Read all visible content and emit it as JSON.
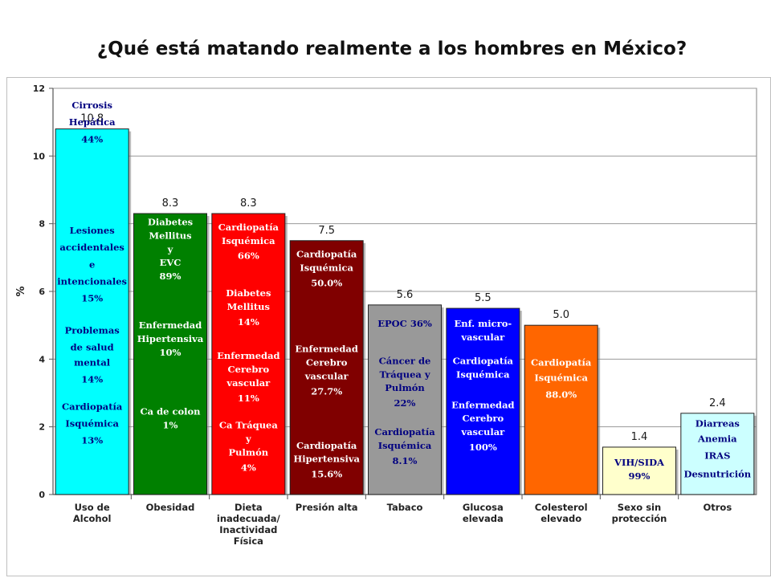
{
  "title": "¿Qué está matando realmente a los hombres en México?",
  "chart_data": {
    "type": "bar",
    "ylabel": "%",
    "xlabel": "",
    "ylim": [
      0,
      12
    ],
    "yticks": [
      "0",
      "2",
      "4",
      "6",
      "8",
      "10",
      "12"
    ],
    "grid": true,
    "categories": [
      [
        "Uso de",
        "Alcohol"
      ],
      [
        "Obesidad"
      ],
      [
        "Dieta",
        "inadecuada/",
        "Inactividad",
        "Física"
      ],
      [
        "Presión alta"
      ],
      [
        "Tabaco"
      ],
      [
        "Glucosa",
        "elevada"
      ],
      [
        "Colesterol",
        "elevado"
      ],
      [
        "Sexo sin",
        "protección"
      ],
      [
        "Otros"
      ]
    ],
    "values": [
      10.8,
      8.3,
      8.3,
      7.5,
      5.6,
      5.5,
      5.0,
      1.4,
      2.4
    ],
    "value_labels": [
      "10.8",
      "8.3",
      "8.3",
      "7.5",
      "5.6",
      "5.5",
      "5.0",
      "1.4",
      "2.4"
    ],
    "colors": [
      "#00ffff",
      "#008000",
      "#ff0000",
      "#800000",
      "#999999",
      "#0000ff",
      "#ff6600",
      "#ffffcc",
      "#ccffff"
    ],
    "annotations": [
      {
        "color": "#000080",
        "lines": [
          {
            "t": "Cirrosis",
            "v": 11.5
          },
          {
            "t": "Hepática",
            "v": 11.0
          },
          {
            "t": "44%",
            "v": 10.5
          },
          {
            "t": "Lesiones",
            "v": 7.8
          },
          {
            "t": "accidentales",
            "v": 7.3
          },
          {
            "t": "e",
            "v": 6.8
          },
          {
            "t": "intencionales",
            "v": 6.3
          },
          {
            "t": "15%",
            "v": 5.8
          },
          {
            "t": "Problemas",
            "v": 4.85
          },
          {
            "t": "de salud",
            "v": 4.35
          },
          {
            "t": "mental",
            "v": 3.9
          },
          {
            "t": "14%",
            "v": 3.4
          },
          {
            "t": "Cardiopatía",
            "v": 2.6
          },
          {
            "t": "Isquémica",
            "v": 2.1
          },
          {
            "t": "13%",
            "v": 1.6
          }
        ]
      },
      {
        "color": "#ffffff",
        "lines": [
          {
            "t": "Diabetes",
            "v": 8.05
          },
          {
            "t": "Mellitus",
            "v": 7.65
          },
          {
            "t": "y",
            "v": 7.25
          },
          {
            "t": "EVC",
            "v": 6.85
          },
          {
            "t": "89%",
            "v": 6.45
          },
          {
            "t": "Enfermedad",
            "v": 5.0
          },
          {
            "t": "Hipertensiva",
            "v": 4.6
          },
          {
            "t": "10%",
            "v": 4.2
          },
          {
            "t": "Ca de colon",
            "v": 2.45
          },
          {
            "t": "1%",
            "v": 2.05
          }
        ]
      },
      {
        "color": "#ffffff",
        "lines": [
          {
            "t": "Cardiopatía",
            "v": 7.9
          },
          {
            "t": "Isquémica",
            "v": 7.5
          },
          {
            "t": "66%",
            "v": 7.05
          },
          {
            "t": "Diabetes",
            "v": 5.95
          },
          {
            "t": "Mellitus",
            "v": 5.55
          },
          {
            "t": "14%",
            "v": 5.1
          },
          {
            "t": "Enfermedad",
            "v": 4.1
          },
          {
            "t": "Cerebro",
            "v": 3.7
          },
          {
            "t": "vascular",
            "v": 3.3
          },
          {
            "t": "11%",
            "v": 2.85
          },
          {
            "t": "Ca Tráquea",
            "v": 2.05
          },
          {
            "t": "y",
            "v": 1.65
          },
          {
            "t": "Pulmón",
            "v": 1.25
          },
          {
            "t": "4%",
            "v": 0.8
          }
        ]
      },
      {
        "color": "#ffffff",
        "lines": [
          {
            "t": "Cardiopatía",
            "v": 7.1
          },
          {
            "t": "Isquémica",
            "v": 6.7
          },
          {
            "t": "50.0%",
            "v": 6.25
          },
          {
            "t": "Enfermedad",
            "v": 4.3
          },
          {
            "t": "Cerebro",
            "v": 3.9
          },
          {
            "t": "vascular",
            "v": 3.5
          },
          {
            "t": "27.7%",
            "v": 3.05
          },
          {
            "t": "Cardiopatía",
            "v": 1.45
          },
          {
            "t": "Hipertensiva",
            "v": 1.05
          },
          {
            "t": "15.6%",
            "v": 0.6
          }
        ]
      },
      {
        "color": "#000080",
        "lines": [
          {
            "t": "EPOC 36%",
            "v": 5.05
          },
          {
            "t": "Cáncer de",
            "v": 3.95
          },
          {
            "t": "Tráquea  y",
            "v": 3.55
          },
          {
            "t": "Pulmón",
            "v": 3.15
          },
          {
            "t": "22%",
            "v": 2.7
          },
          {
            "t": "Cardiopatía",
            "v": 1.85
          },
          {
            "t": "Isquémica",
            "v": 1.45
          },
          {
            "t": "8.1%",
            "v": 1.0
          }
        ]
      },
      {
        "color": "#ffffff",
        "lines": [
          {
            "t": "Enf. micro-",
            "v": 5.05
          },
          {
            "t": "vascular",
            "v": 4.65
          },
          {
            "t": "Cardiopatía",
            "v": 3.95
          },
          {
            "t": "Isquémica",
            "v": 3.55
          },
          {
            "t": "Enfermedad",
            "v": 2.65
          },
          {
            "t": "Cerebro",
            "v": 2.25
          },
          {
            "t": "vascular",
            "v": 1.85
          },
          {
            "t": "100%",
            "v": 1.4
          }
        ]
      },
      {
        "color": "#ffffff",
        "lines": [
          {
            "t": "Cardiopatía",
            "v": 3.9
          },
          {
            "t": "Isquémica",
            "v": 3.45
          },
          {
            "t": "88.0%",
            "v": 2.95
          }
        ]
      },
      {
        "color": "#000080",
        "lines": [
          {
            "t": "VIH/SIDA",
            "v": 0.95
          },
          {
            "t": "99%",
            "v": 0.55
          }
        ]
      },
      {
        "color": "#000080",
        "lines": [
          {
            "t": "Diarreas",
            "v": 2.1
          },
          {
            "t": "Anemia",
            "v": 1.65
          },
          {
            "t": "IRAS",
            "v": 1.15
          },
          {
            "t": "Desnutrición",
            "v": 0.6
          }
        ]
      }
    ]
  }
}
